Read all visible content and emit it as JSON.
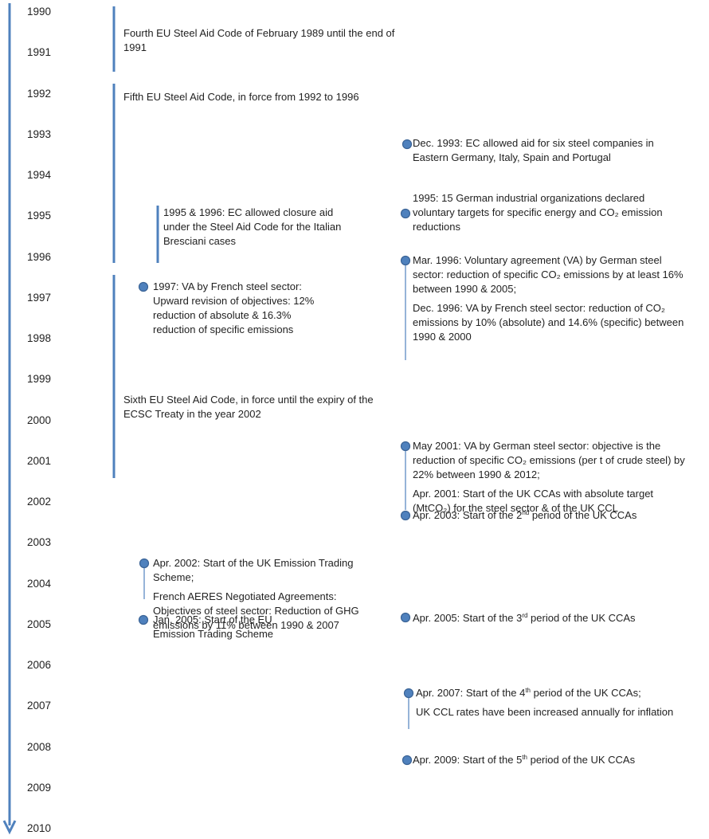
{
  "years": [
    "1990",
    "1991",
    "1992",
    "1993",
    "1994",
    "1995",
    "1996",
    "1997",
    "1998",
    "1999",
    "2000",
    "2001",
    "2002",
    "2003",
    "2004",
    "2005",
    "2006",
    "2007",
    "2008",
    "2009",
    "2010"
  ],
  "aid_codes": [
    {
      "paragraphs": [
        "Fourth EU Steel Aid Code of February 1989 until the end of 1991"
      ]
    },
    {
      "paragraphs": [
        "Fifth EU Steel Aid Code, in force from 1992 to 1996"
      ]
    },
    {
      "paragraphs": [
        "Sixth EU Steel Aid Code, in force until the expiry of the ECSC Treaty in the year 2002"
      ]
    },
    {
      "paragraphs": [
        "1995 & 1996: EC allowed closure aid under the Steel Aid Code for the Italian Bresciani cases"
      ]
    }
  ],
  "events_left": [
    {
      "paragraphs": [
        "1997: VA by French steel sector: Upward revision of objectives: 12% reduction of absolute & 16.3% reduction of specific emissions"
      ]
    },
    {
      "paragraphs": [
        "Apr. 2002: Start of the UK Emission Trading Scheme;",
        "French AERES Negotiated Agreements: Objectives of steel sector: Reduction of GHG emissions by 11% between 1990 & 2007"
      ]
    },
    {
      "paragraphs": [
        "Jan. 2005: Start of the EU Emission Trading Scheme"
      ]
    }
  ],
  "events_right": [
    {
      "paragraphs": [
        "Dec. 1993: EC allowed aid for six steel companies in Eastern Germany, Italy, Spain and Portugal"
      ]
    },
    {
      "paragraphs": [
        "1995: 15 German industrial organizations declared voluntary targets for specific energy and CO₂ emission reductions"
      ]
    },
    {
      "paragraphs": [
        "Mar. 1996: Voluntary agreement (VA) by German steel sector: reduction of specific CO₂ emissions by at least 16% between 1990 & 2005;",
        "Dec. 1996: VA by French steel sector: reduction of CO₂ emissions by 10% (absolute) and 14.6% (specific) between 1990 & 2000"
      ]
    },
    {
      "paragraphs": [
        "May 2001: VA by German steel sector: objective is the reduction of specific CO₂ emissions (per t of crude steel) by 22% between 1990 & 2012;",
        "Apr. 2001: Start of the UK CCAs with absolute target (MtCO₂) for the steel sector & of the UK CCL"
      ]
    },
    {
      "paragraphs": [
        "Apr. 2003: Start of the 2nd period of the UK CCAs"
      ]
    },
    {
      "paragraphs": [
        "Apr. 2005: Start of the 3rd period of the UK CCAs"
      ]
    },
    {
      "paragraphs": [
        "Apr. 2007: Start of the 4th period of the UK CCAs;",
        "UK CCL rates have been increased annually for inflation"
      ]
    },
    {
      "paragraphs": [
        "Apr. 2009: Start of the 5th period of the UK CCAs"
      ]
    }
  ]
}
